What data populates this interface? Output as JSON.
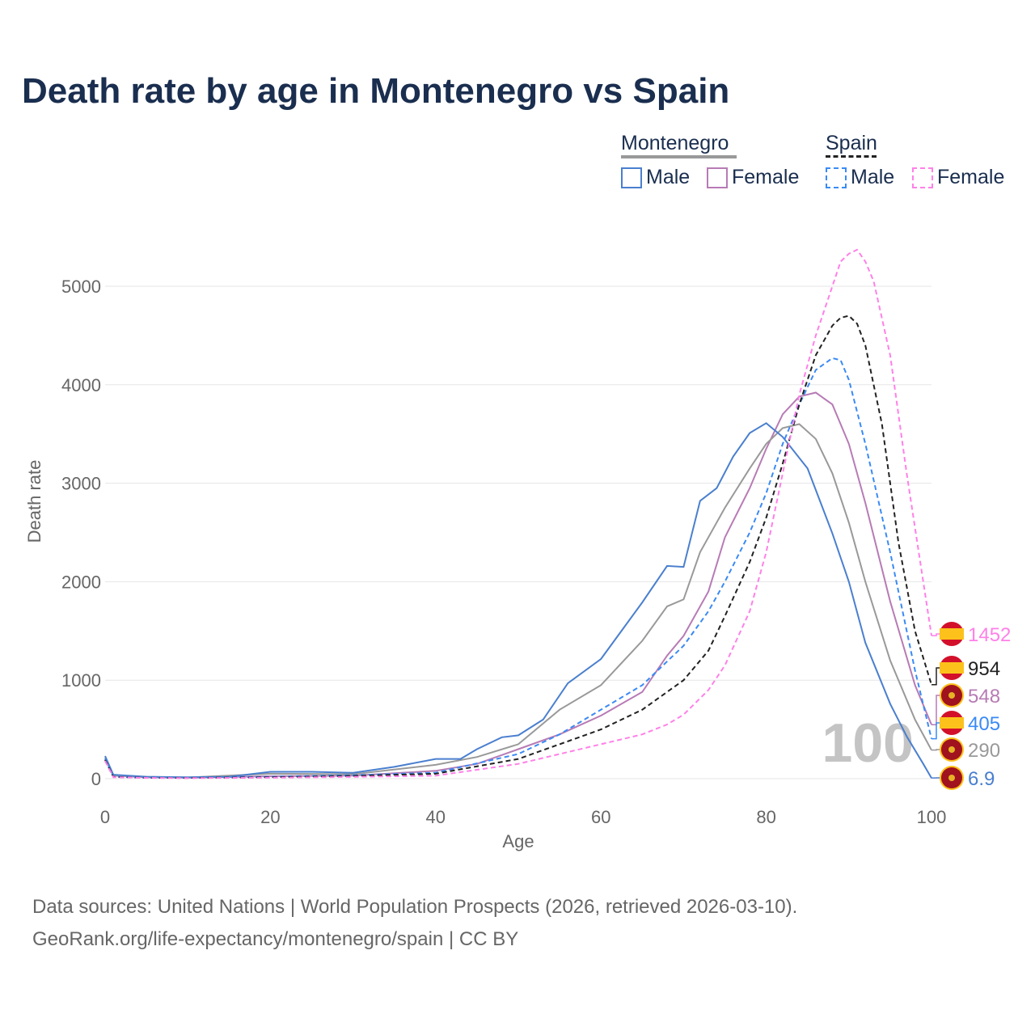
{
  "title": "Death rate by age in Montenegro vs Spain",
  "legend": {
    "group1": "Montenegro",
    "group2": "Spain",
    "male": "Male",
    "female": "Female"
  },
  "source": [
    "Data sources: United Nations | World Population Prospects (2026, retrieved 2026-03-10).",
    "GeoRank.org/life-expectancy/montenegro/spain | CC BY"
  ],
  "watermark": "100",
  "chart_data": {
    "type": "line",
    "xlabel": "Age",
    "ylabel": "Death rate",
    "xlim": [
      0,
      100
    ],
    "ylim": [
      0,
      5000
    ],
    "xticks": [
      "0",
      "20",
      "40",
      "60",
      "80",
      "100"
    ],
    "yticks": [
      "0",
      "1000",
      "2000",
      "3000",
      "4000",
      "5000"
    ],
    "series": [
      {
        "name": "Montenegro Female",
        "color": "#b77bb5",
        "dash": false,
        "end_label": "548",
        "flag": "montenegro",
        "x": [
          0,
          1,
          5,
          10,
          20,
          30,
          40,
          45,
          50,
          55,
          60,
          65,
          68,
          70,
          73,
          75,
          78,
          80,
          82,
          84,
          86,
          88,
          90,
          92,
          95,
          98,
          100
        ],
        "y": [
          200,
          30,
          15,
          10,
          25,
          30,
          80,
          150,
          300,
          450,
          640,
          880,
          1250,
          1450,
          1900,
          2450,
          2950,
          3350,
          3700,
          3880,
          3920,
          3800,
          3400,
          2800,
          1800,
          950,
          548
        ]
      },
      {
        "name": "Montenegro Total",
        "color": "#999999",
        "dash": false,
        "end_label": "290",
        "flag": "montenegro",
        "x": [
          0,
          1,
          5,
          10,
          20,
          30,
          40,
          45,
          50,
          55,
          60,
          65,
          68,
          70,
          72,
          75,
          78,
          80,
          82,
          84,
          86,
          88,
          90,
          92,
          95,
          98,
          100
        ],
        "y": [
          215,
          35,
          18,
          12,
          50,
          45,
          140,
          220,
          350,
          700,
          950,
          1400,
          1750,
          1820,
          2300,
          2750,
          3150,
          3400,
          3560,
          3600,
          3450,
          3100,
          2600,
          2000,
          1200,
          600,
          290
        ]
      },
      {
        "name": "Montenegro Male",
        "color": "#4a7fcf",
        "dash": false,
        "end_label": "6.9",
        "flag": "montenegro",
        "x": [
          0,
          1,
          5,
          10,
          15,
          20,
          25,
          30,
          35,
          40,
          43,
          45,
          48,
          50,
          53,
          56,
          60,
          65,
          68,
          70,
          72,
          74,
          76,
          78,
          80,
          82,
          85,
          88,
          90,
          92,
          95,
          97,
          99,
          100
        ],
        "y": [
          230,
          40,
          20,
          15,
          20,
          70,
          70,
          60,
          120,
          200,
          200,
          300,
          420,
          440,
          600,
          970,
          1215,
          1790,
          2160,
          2150,
          2820,
          2950,
          3270,
          3510,
          3610,
          3470,
          3150,
          2490,
          2000,
          1380,
          760,
          430,
          150,
          6.9
        ]
      },
      {
        "name": "Spain Male",
        "color": "#3a8af5",
        "dash": true,
        "end_label": "405",
        "flag": "spain",
        "x": [
          0,
          1,
          5,
          10,
          20,
          30,
          40,
          50,
          55,
          60,
          65,
          70,
          73,
          75,
          78,
          80,
          82,
          84,
          86,
          88,
          89,
          90,
          92,
          95,
          98,
          100
        ],
        "y": [
          200,
          20,
          10,
          8,
          20,
          35,
          60,
          250,
          450,
          700,
          950,
          1350,
          1700,
          2000,
          2500,
          2900,
          3400,
          3800,
          4150,
          4270,
          4250,
          4050,
          3400,
          2300,
          1100,
          405
        ]
      },
      {
        "name": "Spain Total",
        "color": "#222222",
        "dash": true,
        "end_label": "954",
        "flag": "spain",
        "x": [
          0,
          1,
          5,
          10,
          20,
          30,
          40,
          50,
          55,
          60,
          65,
          70,
          73,
          75,
          78,
          80,
          82,
          84,
          86,
          88,
          89,
          90,
          91,
          92,
          94,
          96,
          98,
          100
        ],
        "y": [
          190,
          18,
          9,
          7,
          15,
          28,
          50,
          200,
          350,
          500,
          700,
          1000,
          1300,
          1650,
          2200,
          2650,
          3200,
          3800,
          4300,
          4600,
          4680,
          4700,
          4620,
          4400,
          3600,
          2400,
          1500,
          954
        ]
      },
      {
        "name": "Spain Female",
        "color": "#ff80e8",
        "dash": true,
        "end_label": "1452",
        "flag": "spain",
        "x": [
          0,
          1,
          5,
          10,
          20,
          30,
          40,
          50,
          55,
          60,
          65,
          68,
          70,
          73,
          75,
          78,
          80,
          82,
          84,
          86,
          88,
          89,
          90,
          91,
          92,
          93,
          95,
          97,
          99,
          100
        ],
        "y": [
          180,
          15,
          8,
          6,
          10,
          18,
          30,
          150,
          250,
          350,
          450,
          550,
          650,
          900,
          1150,
          1700,
          2300,
          3100,
          3900,
          4500,
          5000,
          5250,
          5330,
          5370,
          5250,
          5050,
          4300,
          3100,
          2000,
          1452
        ]
      }
    ]
  }
}
